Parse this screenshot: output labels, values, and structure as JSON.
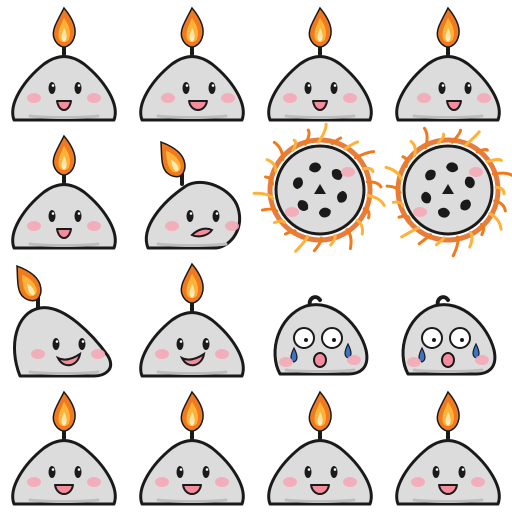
{
  "sheet": {
    "grid": {
      "columns": 4,
      "rows": 4
    },
    "colors": {
      "outline": "#1a1a1a",
      "body_fill": "#dcdcdc",
      "body_shade": "#bdbdbd",
      "blush": "#f4aab6",
      "mouth": "#f58c9c",
      "flame_outer": "#f07a1e",
      "flame_mid": "#ffb23a",
      "flame_core": "#ffe9b0",
      "fire": "#e2661b",
      "tear": "#3a73c8"
    },
    "frames": [
      {
        "row": 1,
        "col": 1,
        "pose": "idle",
        "expression": "smile",
        "flame": "lit"
      },
      {
        "row": 1,
        "col": 2,
        "pose": "idle-shift",
        "expression": "grin",
        "flame": "lit"
      },
      {
        "row": 1,
        "col": 3,
        "pose": "idle",
        "expression": "smile",
        "flame": "lit"
      },
      {
        "row": 1,
        "col": 4,
        "pose": "idle-shift",
        "expression": "smile",
        "flame": "lit"
      },
      {
        "row": 2,
        "col": 1,
        "pose": "idle",
        "expression": "smile",
        "flame": "lit"
      },
      {
        "row": 2,
        "col": 2,
        "pose": "lean",
        "expression": "worried",
        "flame": "lit-tilted"
      },
      {
        "row": 2,
        "col": 3,
        "pose": "fire-ring",
        "expression": "spinning",
        "flame": "ring"
      },
      {
        "row": 2,
        "col": 4,
        "pose": "fire-ring",
        "expression": "spinning",
        "flame": "ring"
      },
      {
        "row": 3,
        "col": 1,
        "pose": "tilt",
        "expression": "smirk",
        "flame": "lit-tilted"
      },
      {
        "row": 3,
        "col": 2,
        "pose": "idle",
        "expression": "smirk",
        "flame": "lit"
      },
      {
        "row": 3,
        "col": 3,
        "pose": "scared",
        "expression": "crying",
        "flame": "out"
      },
      {
        "row": 3,
        "col": 4,
        "pose": "scared",
        "expression": "crying",
        "flame": "out"
      },
      {
        "row": 4,
        "col": 1,
        "pose": "idle",
        "expression": "grin",
        "flame": "lit"
      },
      {
        "row": 4,
        "col": 2,
        "pose": "idle",
        "expression": "grin",
        "flame": "lit"
      },
      {
        "row": 4,
        "col": 3,
        "pose": "idle",
        "expression": "grin",
        "flame": "lit"
      },
      {
        "row": 4,
        "col": 4,
        "pose": "idle",
        "expression": "grin",
        "flame": "lit"
      }
    ]
  }
}
